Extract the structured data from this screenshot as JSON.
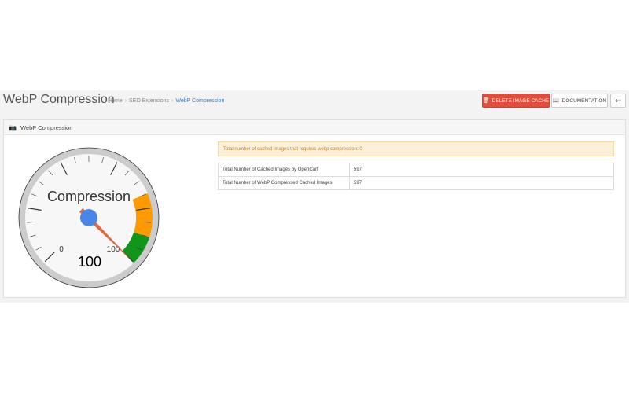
{
  "header": {
    "title": "WebP Compression",
    "breadcrumb": [
      "Home",
      "SEO Extensions",
      "WebP Compression"
    ],
    "buttons": {
      "delete_cache": "DELETE IMAGE CACHE",
      "documentation": "DOCUMENTATION"
    }
  },
  "panel": {
    "title": "WebP Compression",
    "gauge": {
      "label": "Compression",
      "value_display": "100",
      "min_label": "0",
      "max_label": "100",
      "value": 100,
      "min": 0,
      "max": 100,
      "colors": {
        "needle": "#dc6a43",
        "hub": "#4a86e8",
        "warning": "#ff9900",
        "good": "#109618"
      }
    },
    "alert": "Total number of cached images that requires webp compression: 0",
    "stats": [
      {
        "label": "Total Number of Cached Images by OpenCart",
        "value": "597"
      },
      {
        "label": "Total Number of WebP Compressed Cached Images",
        "value": "597"
      }
    ]
  }
}
